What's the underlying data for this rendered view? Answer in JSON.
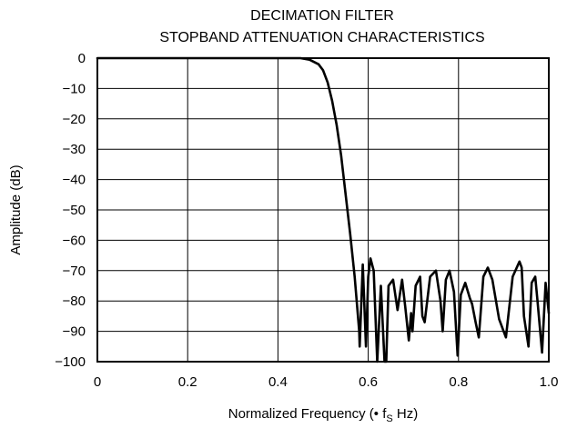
{
  "chart_data": {
    "type": "line",
    "title": "DECIMATION FILTER",
    "subtitle": "STOPBAND ATTENUATION CHARACTERISTICS",
    "xlabel_parts": {
      "prefix": "Normalized Frequency (• f",
      "subscript": "S",
      "suffix": " Hz)"
    },
    "ylabel": "Amplitude (dB)",
    "xlim": [
      0,
      1.0
    ],
    "ylim": [
      -100,
      0
    ],
    "grid": true,
    "x_ticks": [
      {
        "value": 0,
        "label": "0"
      },
      {
        "value": 0.2,
        "label": "0.2"
      },
      {
        "value": 0.4,
        "label": "0.4"
      },
      {
        "value": 0.6,
        "label": "0.6"
      },
      {
        "value": 0.8,
        "label": "0.8"
      },
      {
        "value": 1.0,
        "label": "1.0"
      }
    ],
    "y_ticks": [
      {
        "value": 0,
        "label": "0"
      },
      {
        "value": -10,
        "label": "−10"
      },
      {
        "value": -20,
        "label": "−20"
      },
      {
        "value": -30,
        "label": "−30"
      },
      {
        "value": -40,
        "label": "−40"
      },
      {
        "value": -50,
        "label": "−50"
      },
      {
        "value": -60,
        "label": "−60"
      },
      {
        "value": -70,
        "label": "−70"
      },
      {
        "value": -80,
        "label": "−80"
      },
      {
        "value": -90,
        "label": "−90"
      },
      {
        "value": -100,
        "label": "−100"
      }
    ],
    "series": [
      {
        "x": [
          0,
          0.45,
          0.47,
          0.49,
          0.5,
          0.51,
          0.52,
          0.53,
          0.54,
          0.55,
          0.56,
          0.57,
          0.58,
          0.581,
          0.588,
          0.595,
          0.6,
          0.605,
          0.612,
          0.62,
          0.628,
          0.636,
          0.64,
          0.645,
          0.655,
          0.665,
          0.672,
          0.675,
          0.682,
          0.69,
          0.695,
          0.698,
          0.705,
          0.715,
          0.72,
          0.725,
          0.737,
          0.75,
          0.76,
          0.765,
          0.772,
          0.78,
          0.79,
          0.798,
          0.805,
          0.815,
          0.825,
          0.83,
          0.838,
          0.845,
          0.855,
          0.865,
          0.875,
          0.89,
          0.905,
          0.92,
          0.935,
          0.94,
          0.945,
          0.955,
          0.962,
          0.97,
          0.975,
          0.985,
          0.993,
          1.0
        ],
        "y": [
          0,
          0,
          -0.5,
          -2,
          -4,
          -8,
          -14,
          -22,
          -32,
          -45,
          -58,
          -72,
          -90,
          -95,
          -68,
          -95,
          -72,
          -66,
          -70,
          -100,
          -75,
          -100,
          -100,
          -75,
          -73,
          -83,
          -76,
          -73,
          -82,
          -93,
          -84,
          -90,
          -75,
          -72,
          -85,
          -87,
          -72,
          -70,
          -80,
          -90,
          -73,
          -70,
          -77,
          -98,
          -78,
          -74,
          -79,
          -81,
          -87,
          -92,
          -72,
          -69,
          -73,
          -86,
          -92,
          -72,
          -67,
          -69,
          -85,
          -95,
          -74,
          -72,
          -80,
          -97,
          -74,
          -84
        ]
      }
    ]
  }
}
